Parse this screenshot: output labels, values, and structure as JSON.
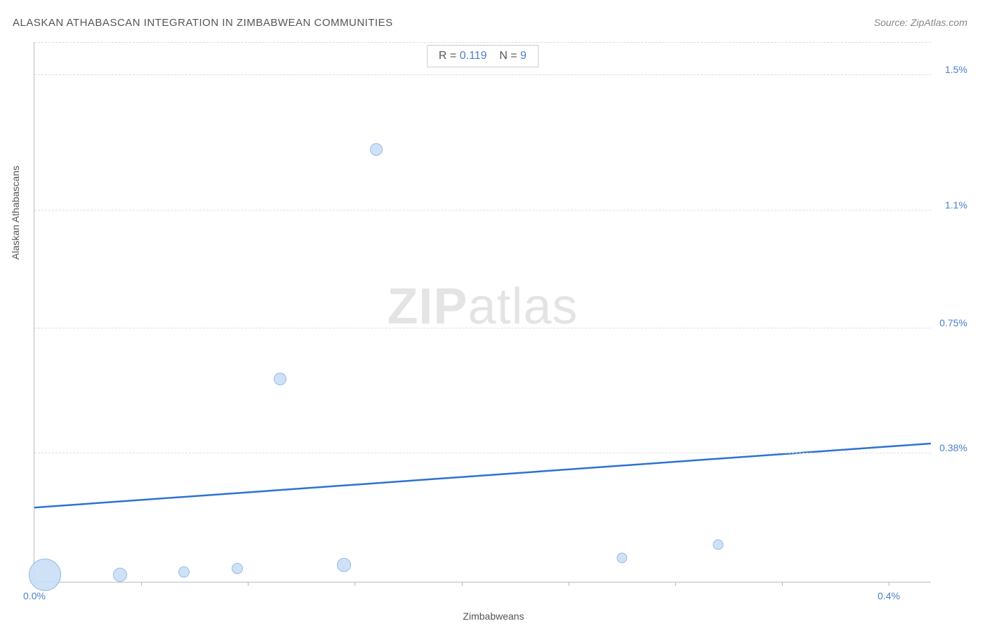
{
  "title": "ALASKAN ATHABASCAN INTEGRATION IN ZIMBABWEAN COMMUNITIES",
  "source": "Source: ZipAtlas.com",
  "watermark_zip": "ZIP",
  "watermark_atlas": "atlas",
  "chart": {
    "type": "scatter",
    "xlabel": "Zimbabweans",
    "ylabel": "Alaskan Athabascans",
    "xlim": [
      0.0,
      0.42
    ],
    "ylim": [
      0.0,
      1.6
    ],
    "x_ticks_labeled": [
      {
        "v": 0.0,
        "label": "0.0%"
      },
      {
        "v": 0.4,
        "label": "0.4%"
      }
    ],
    "x_ticks_minor": [
      0.05,
      0.1,
      0.15,
      0.2,
      0.25,
      0.3,
      0.35
    ],
    "y_ticks": [
      {
        "v": 0.38,
        "label": "0.38%"
      },
      {
        "v": 0.75,
        "label": "0.75%"
      },
      {
        "v": 1.1,
        "label": "1.1%"
      },
      {
        "v": 1.5,
        "label": "1.5%"
      }
    ],
    "gridline_color": "#dddddd",
    "gridline_dash": true,
    "bubble_fill": "#cadef6",
    "bubble_stroke": "#8ab3e5",
    "trend_color": "#2d72d2",
    "trend_width": 2.5,
    "trend_y_at_xmin": 0.22,
    "trend_y_at_xmax": 0.41,
    "background_color": "#ffffff",
    "points": [
      {
        "x": 0.005,
        "y": 0.02,
        "size": 46
      },
      {
        "x": 0.04,
        "y": 0.02,
        "size": 20
      },
      {
        "x": 0.07,
        "y": 0.03,
        "size": 16
      },
      {
        "x": 0.095,
        "y": 0.04,
        "size": 16
      },
      {
        "x": 0.145,
        "y": 0.05,
        "size": 20
      },
      {
        "x": 0.16,
        "y": 1.28,
        "size": 18
      },
      {
        "x": 0.115,
        "y": 0.6,
        "size": 18
      },
      {
        "x": 0.275,
        "y": 0.07,
        "size": 15
      },
      {
        "x": 0.32,
        "y": 0.11,
        "size": 15
      }
    ],
    "stats": {
      "r_label": "R =",
      "r_value": "0.119",
      "n_label": "N =",
      "n_value": "9"
    }
  }
}
